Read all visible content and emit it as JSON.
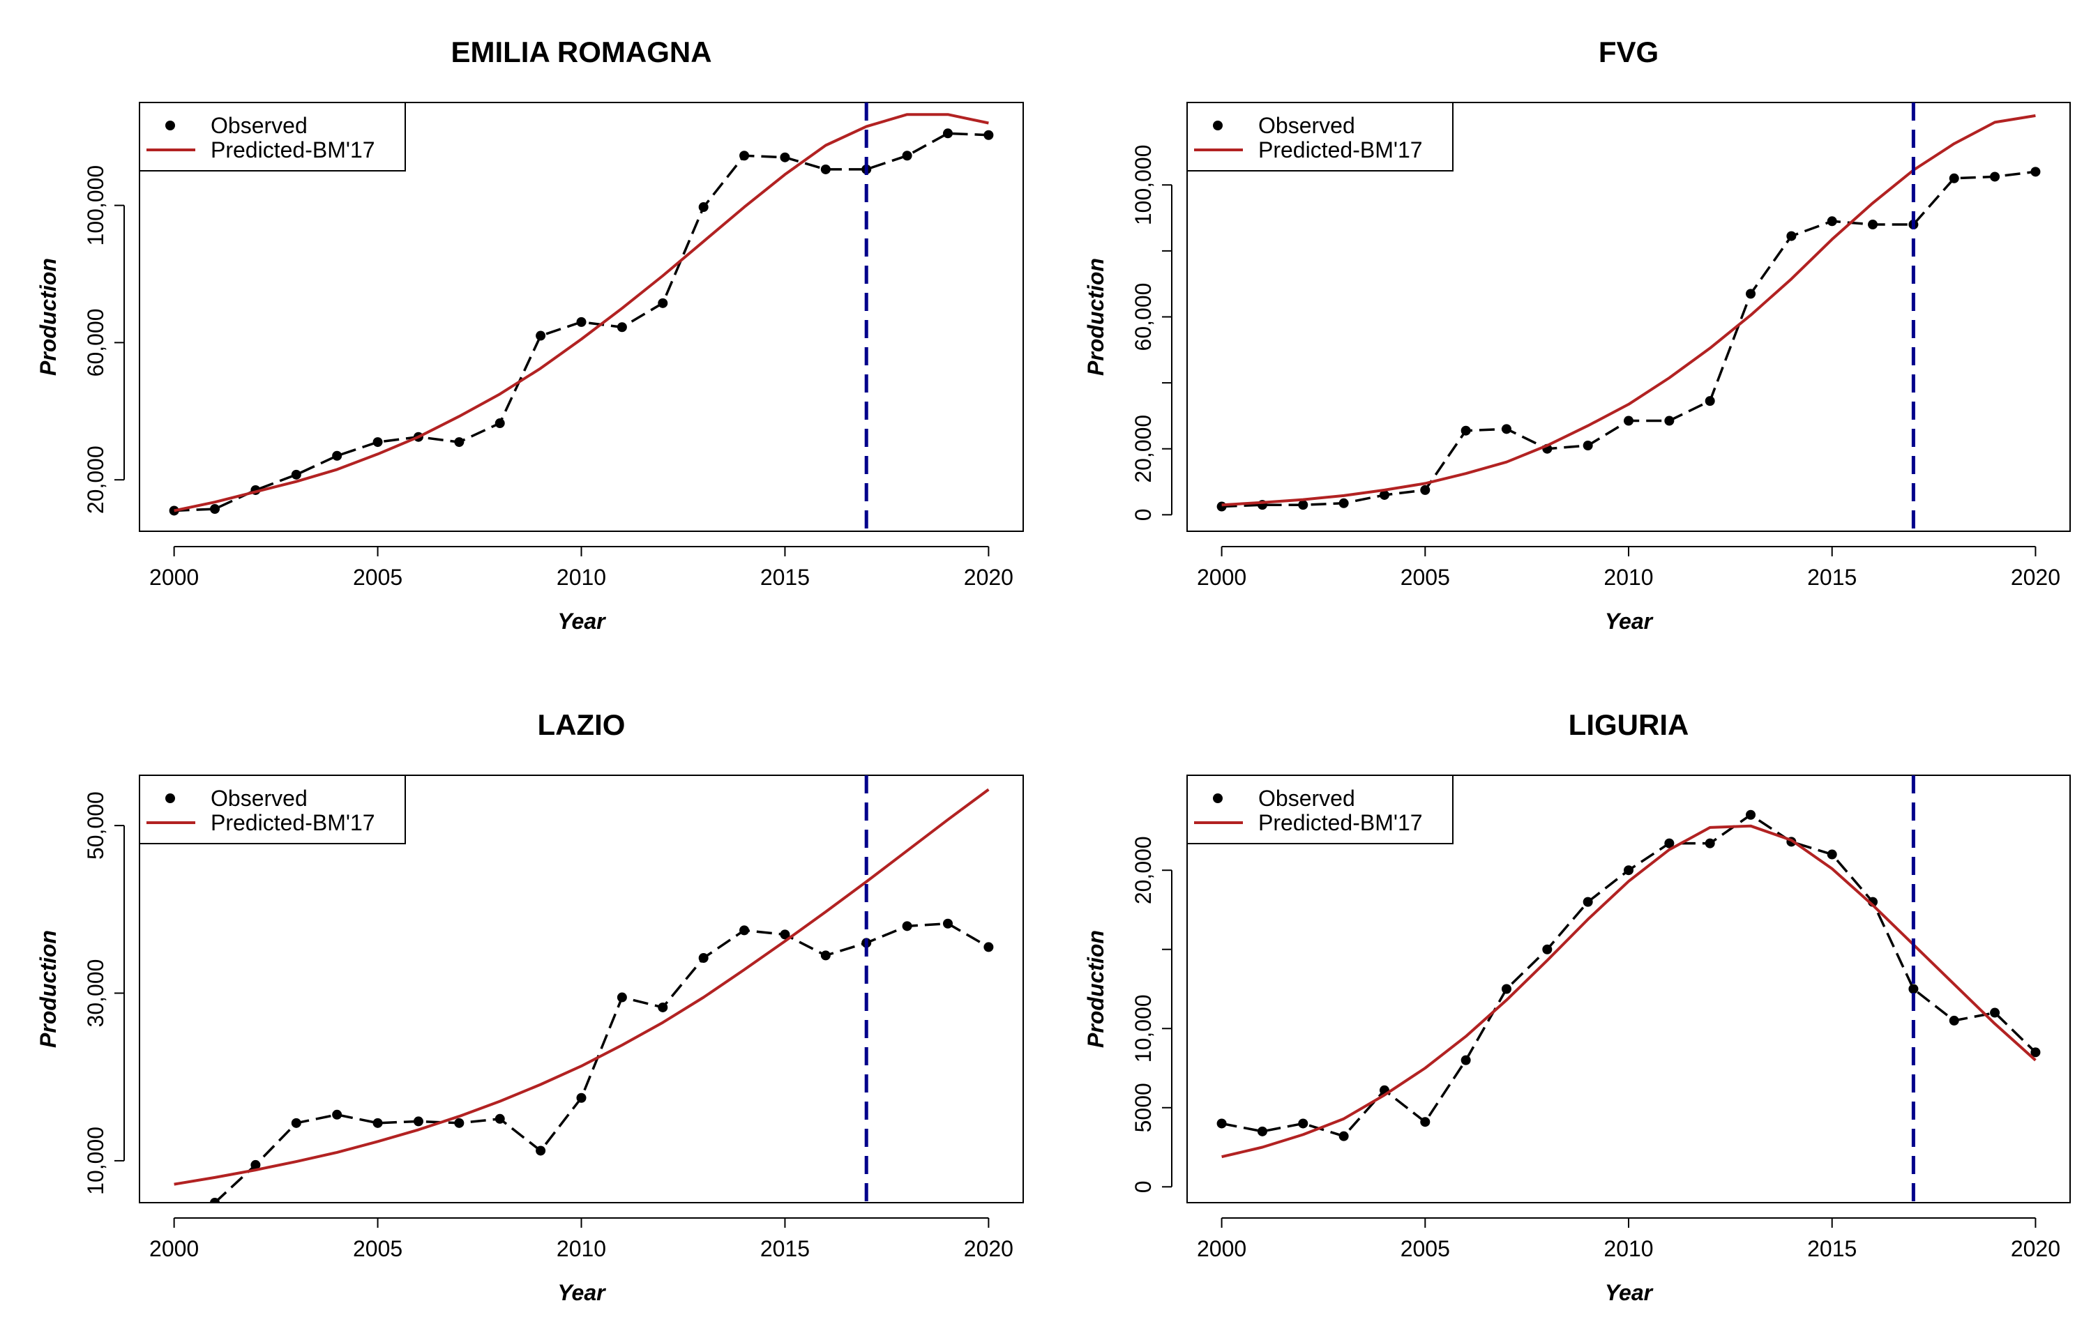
{
  "chart_data": [
    {
      "type": "line",
      "title": "EMILIA ROMAGNA",
      "xlabel": "Year",
      "ylabel": "Production",
      "xlim": [
        1999.15,
        2020.85
      ],
      "ylim": [
        5000,
        130000
      ],
      "xticks": [
        2000,
        2005,
        2010,
        2015,
        2020
      ],
      "xtick_labels": [
        "2000",
        "2005",
        "2010",
        "2015",
        "2020"
      ],
      "yticks": [
        20000,
        60000,
        100000
      ],
      "ytick_labels": [
        "20,000",
        "60,000",
        "100,000"
      ],
      "vline_x": 2017,
      "legend": {
        "position": "top-left",
        "entries": [
          "Observed",
          "Predicted-BM'17"
        ]
      },
      "x": [
        2000,
        2001,
        2002,
        2003,
        2004,
        2005,
        2006,
        2007,
        2008,
        2009,
        2010,
        2011,
        2012,
        2013,
        2014,
        2015,
        2016,
        2017,
        2018,
        2019,
        2020
      ],
      "series": [
        {
          "name": "Observed",
          "style": "dashed-points",
          "color": "#000000",
          "values": [
            11000,
            11500,
            17000,
            21500,
            27000,
            31000,
            32500,
            31000,
            36500,
            62000,
            66000,
            64500,
            71500,
            99500,
            114500,
            114000,
            110500,
            110500,
            114500,
            121000,
            120500
          ]
        },
        {
          "name": "Predicted-BM'17",
          "style": "solid",
          "color": "#b22222",
          "values": [
            11000,
            13500,
            16500,
            19500,
            23000,
            27500,
            32500,
            38500,
            45000,
            52500,
            61000,
            70000,
            79500,
            89500,
            99500,
            109000,
            117500,
            123000,
            126500,
            126500,
            124000
          ]
        }
      ]
    },
    {
      "type": "line",
      "title": "FVG",
      "xlabel": "Year",
      "ylabel": "Production",
      "xlim": [
        1999.15,
        2020.85
      ],
      "ylim": [
        -5000,
        125000
      ],
      "xticks": [
        2000,
        2005,
        2010,
        2015,
        2020
      ],
      "xtick_labels": [
        "2000",
        "2005",
        "2010",
        "2015",
        "2020"
      ],
      "yticks": [
        0,
        20000,
        60000,
        100000
      ],
      "ytick_labels": [
        "0",
        "20,000",
        "60,000",
        "100,000"
      ],
      "vline_x": 2017,
      "legend": {
        "position": "top-left",
        "entries": [
          "Observed",
          "Predicted-BM'17"
        ]
      },
      "x": [
        2000,
        2001,
        2002,
        2003,
        2004,
        2005,
        2006,
        2007,
        2008,
        2009,
        2010,
        2011,
        2012,
        2013,
        2014,
        2015,
        2016,
        2017,
        2018,
        2019,
        2020
      ],
      "series": [
        {
          "name": "Observed",
          "style": "dashed-points",
          "color": "#000000",
          "values": [
            2500,
            3000,
            3000,
            3500,
            6000,
            7500,
            25500,
            26000,
            20000,
            21000,
            28500,
            28500,
            34500,
            67000,
            84500,
            89000,
            88000,
            88000,
            102000,
            102500,
            104000
          ]
        },
        {
          "name": "Predicted-BM'17",
          "style": "solid",
          "color": "#b22222",
          "values": [
            3000,
            3700,
            4600,
            5800,
            7500,
            9500,
            12500,
            16000,
            21000,
            27000,
            33500,
            41500,
            50500,
            60500,
            71500,
            83500,
            94500,
            104500,
            112500,
            119000,
            121000
          ]
        }
      ]
    },
    {
      "type": "line",
      "title": "LAZIO",
      "xlabel": "Year",
      "ylabel": "Production",
      "xlim": [
        1999.15,
        2020.85
      ],
      "ylim": [
        5000,
        56000
      ],
      "xticks": [
        2000,
        2005,
        2010,
        2015,
        2020
      ],
      "xtick_labels": [
        "2000",
        "2005",
        "2010",
        "2015",
        "2020"
      ],
      "yticks": [
        10000,
        30000,
        50000
      ],
      "ytick_labels": [
        "10,000",
        "30,000",
        "50,000"
      ],
      "vline_x": 2017,
      "legend": {
        "position": "top-left",
        "entries": [
          "Observed",
          "Predicted-BM'17"
        ]
      },
      "x": [
        2000,
        2001,
        2002,
        2003,
        2004,
        2005,
        2006,
        2007,
        2008,
        2009,
        2010,
        2011,
        2012,
        2013,
        2014,
        2015,
        2016,
        2017,
        2018,
        2019,
        2020
      ],
      "series": [
        {
          "name": "Observed",
          "style": "dashed-points",
          "color": "#000000",
          "values": [
            null,
            5000,
            9500,
            14500,
            15500,
            14500,
            14700,
            14500,
            15000,
            11200,
            17500,
            29500,
            28300,
            34200,
            37500,
            37000,
            34500,
            36000,
            38000,
            38300,
            35500
          ]
        },
        {
          "name": "Predicted-BM'17",
          "style": "solid",
          "color": "#b22222",
          "values": [
            7200,
            8000,
            8900,
            9900,
            11000,
            12300,
            13700,
            15300,
            17100,
            19100,
            21300,
            23800,
            26500,
            29500,
            32800,
            36200,
            39700,
            43300,
            47000,
            50700,
            54300
          ]
        }
      ]
    },
    {
      "type": "line",
      "title": "LIGURIA",
      "xlabel": "Year",
      "ylabel": "Production",
      "xlim": [
        1999.15,
        2020.85
      ],
      "ylim": [
        -1000,
        26000
      ],
      "xticks": [
        2000,
        2005,
        2010,
        2015,
        2020
      ],
      "xtick_labels": [
        "2000",
        "2005",
        "2010",
        "2015",
        "2020"
      ],
      "yticks": [
        0,
        5000,
        10000,
        20000
      ],
      "ytick_labels": [
        "0",
        "5000",
        "10,000",
        "20,000"
      ],
      "vline_x": 2017,
      "legend": {
        "position": "top-left",
        "entries": [
          "Observed",
          "Predicted-BM'17"
        ]
      },
      "x": [
        2000,
        2001,
        2002,
        2003,
        2004,
        2005,
        2006,
        2007,
        2008,
        2009,
        2010,
        2011,
        2012,
        2013,
        2014,
        2015,
        2016,
        2017,
        2018,
        2019,
        2020
      ],
      "series": [
        {
          "name": "Observed",
          "style": "dashed-points",
          "color": "#000000",
          "values": [
            4000,
            3500,
            4000,
            3200,
            6100,
            4100,
            8000,
            12500,
            15000,
            18000,
            20000,
            21700,
            21700,
            23500,
            21800,
            21000,
            18000,
            12500,
            10500,
            11000,
            8500
          ]
        },
        {
          "name": "Predicted-BM'17",
          "style": "solid",
          "color": "#b22222",
          "values": [
            1900,
            2500,
            3300,
            4300,
            5800,
            7500,
            9500,
            11800,
            14300,
            16900,
            19300,
            21300,
            22700,
            22800,
            21900,
            20100,
            17800,
            15300,
            12800,
            10300,
            8000
          ]
        }
      ]
    }
  ],
  "colors": {
    "observed": "#000000",
    "predicted": "#b22222",
    "vline": "#00008b",
    "axis": "#000000"
  }
}
